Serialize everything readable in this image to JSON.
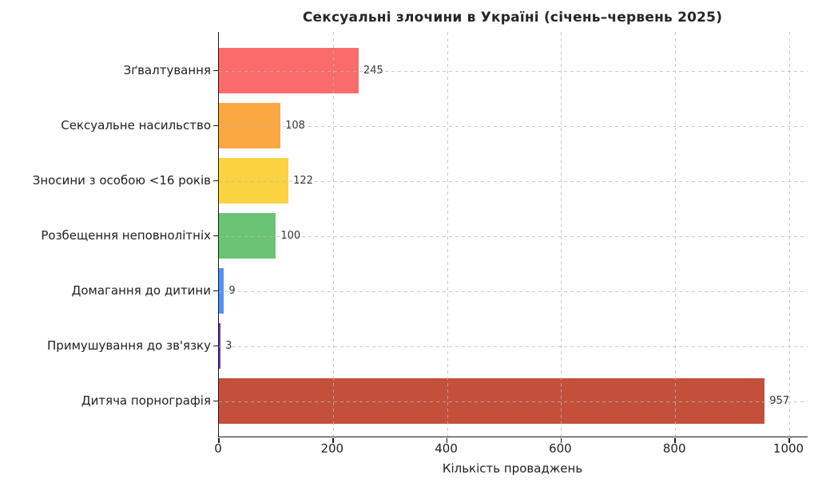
{
  "chart_data": {
    "type": "bar",
    "orientation": "horizontal",
    "title": "Сексуальні злочини в Україні (січень–червень 2025)",
    "xlabel": "Кількість проваджень",
    "ylabel": "",
    "categories": [
      "Зґвалтування",
      "Сексуальне насильство",
      "Зносини з особою <16 років",
      "Розбещення неповнолітніх",
      "Домагання до дитини",
      "Примушування до зв'язку",
      "Дитяча порнографія"
    ],
    "values": [
      245,
      108,
      122,
      100,
      9,
      3,
      957
    ],
    "value_labels": [
      "245",
      "108",
      "122",
      "100",
      "9",
      "3",
      "957"
    ],
    "bar_colors": [
      "#fa6b6b",
      "#f9a842",
      "#fbd341",
      "#6ac474",
      "#4f93f6",
      "#6633cc",
      "#c4503c"
    ],
    "xticks": [
      0,
      200,
      400,
      600,
      800,
      1000
    ],
    "xlim": [
      0,
      1032
    ],
    "grid": "dashed",
    "grid_color": "#b9b9b9",
    "legend": null,
    "background": "#ffffff",
    "spines": [
      "left",
      "bottom"
    ]
  }
}
